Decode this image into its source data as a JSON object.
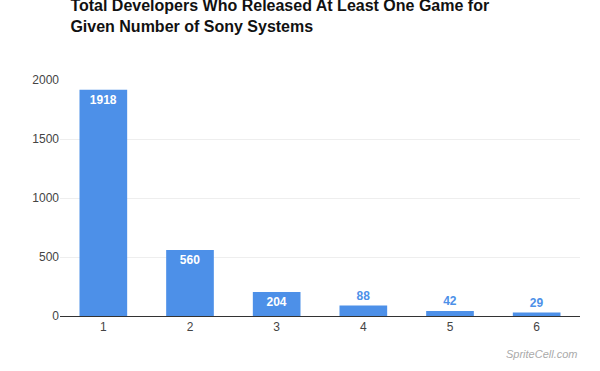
{
  "chart_data": {
    "type": "bar",
    "title": "Total Developers Who Released At Least One Game for\nGiven Number of Sony Systems",
    "categories": [
      1,
      2,
      3,
      4,
      5,
      6
    ],
    "values": [
      1918,
      560,
      204,
      88,
      42,
      29
    ],
    "color": "#4D90E8",
    "ylim": [
      0,
      2000
    ],
    "yticks": [
      0,
      500,
      1000,
      1500,
      2000
    ],
    "grid": true,
    "data_labels": true,
    "annotations": [
      "SpriteCell.com"
    ]
  }
}
